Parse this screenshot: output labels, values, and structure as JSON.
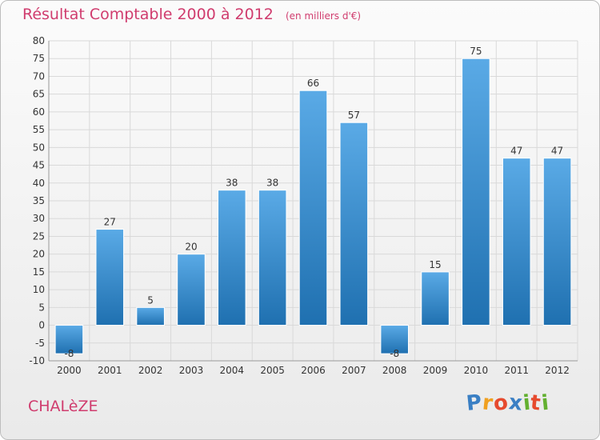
{
  "header": {
    "title": "Résultat Comptable 2000 à 2012",
    "subtitle": "(en milliers d'€)"
  },
  "footer": {
    "place": "CHALèZE",
    "brand": [
      "P",
      "r",
      "o",
      "x",
      "i",
      "t",
      "i"
    ],
    "brand_colors": [
      "#3a7fc4",
      "#f0a020",
      "#e64a2e",
      "#3a7fc4",
      "#63b030",
      "#e64a2e",
      "#63b030"
    ]
  },
  "colors": {
    "bar_light": "#5aaae6",
    "bar_dark": "#1f70b0",
    "grid": "#d9d9d9",
    "title": "#d03c6e"
  },
  "chart_data": {
    "type": "bar",
    "categories": [
      "2000",
      "2001",
      "2002",
      "2003",
      "2004",
      "2005",
      "2006",
      "2007",
      "2008",
      "2009",
      "2010",
      "2011",
      "2012"
    ],
    "values": [
      -8,
      27,
      5,
      20,
      38,
      38,
      66,
      57,
      -8,
      15,
      75,
      47,
      47
    ],
    "value_labels": [
      "-8",
      "27",
      "5",
      "20",
      "38",
      "38",
      "66",
      "57",
      "-8",
      "15",
      "75",
      "47",
      "47"
    ],
    "ylim": [
      -10,
      80
    ],
    "yticks": [
      -10,
      -5,
      0,
      5,
      10,
      15,
      20,
      25,
      30,
      35,
      40,
      45,
      50,
      55,
      60,
      65,
      70,
      75,
      80
    ],
    "grid": true,
    "legend": "none"
  }
}
